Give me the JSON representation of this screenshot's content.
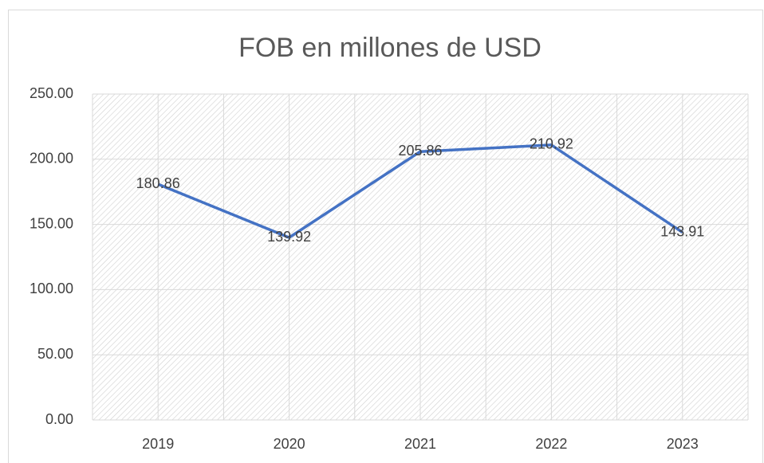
{
  "chart_data": {
    "type": "line",
    "title": "FOB en millones de USD",
    "categories": [
      "2019",
      "2020",
      "2021",
      "2022",
      "2023"
    ],
    "series": [
      {
        "name": "FOB",
        "color": "#4472c4",
        "values": [
          180.86,
          139.92,
          205.86,
          210.92,
          143.91
        ]
      }
    ],
    "ylim": [
      0,
      250
    ],
    "yticks": [
      {
        "value": 0,
        "label": "0.00"
      },
      {
        "value": 50,
        "label": "50.00"
      },
      {
        "value": 100,
        "label": "100.00"
      },
      {
        "value": 150,
        "label": "150.00"
      },
      {
        "value": 200,
        "label": "200.00"
      },
      {
        "value": 250,
        "label": "250.00"
      }
    ],
    "grid": true
  }
}
